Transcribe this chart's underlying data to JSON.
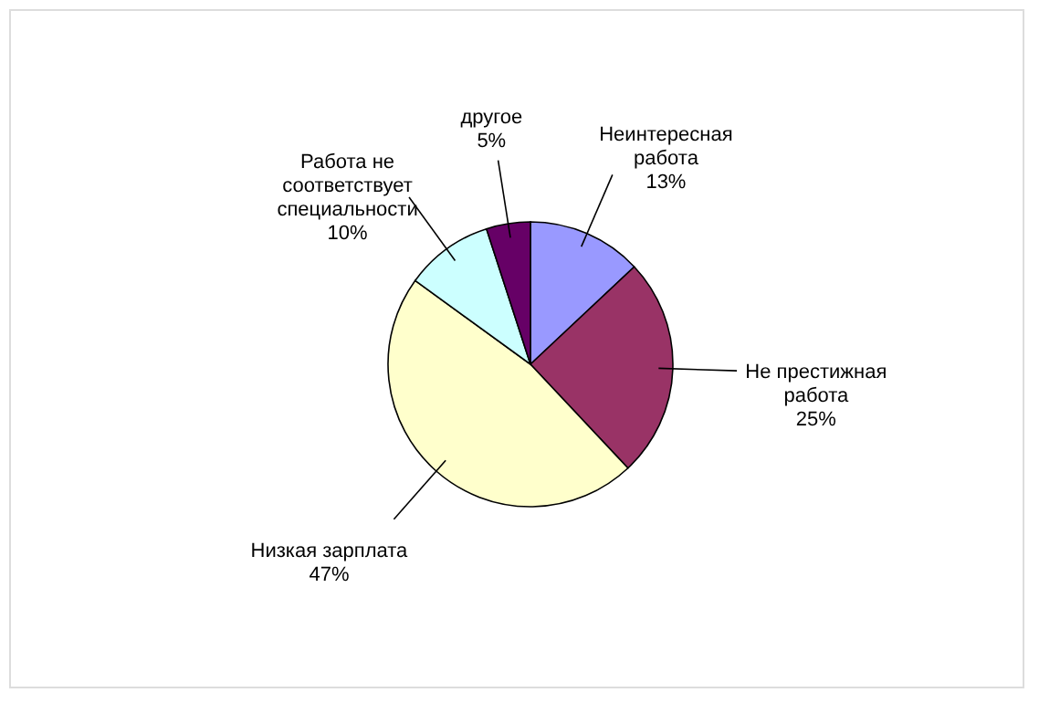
{
  "chart_data": {
    "type": "pie",
    "categories": [
      "Неинтересная\nработа",
      "Не престижная\nработа",
      "Низкая зарплата",
      "Работа не\nсоответствует\nспециальности",
      "другое"
    ],
    "values": [
      13,
      25,
      47,
      10,
      5
    ],
    "value_labels": [
      "13%",
      "25%",
      "47%",
      "10%",
      "5%"
    ],
    "colors": [
      "#9999ff",
      "#993366",
      "#ffffcc",
      "#ccffff",
      "#660066"
    ],
    "legend": false
  }
}
